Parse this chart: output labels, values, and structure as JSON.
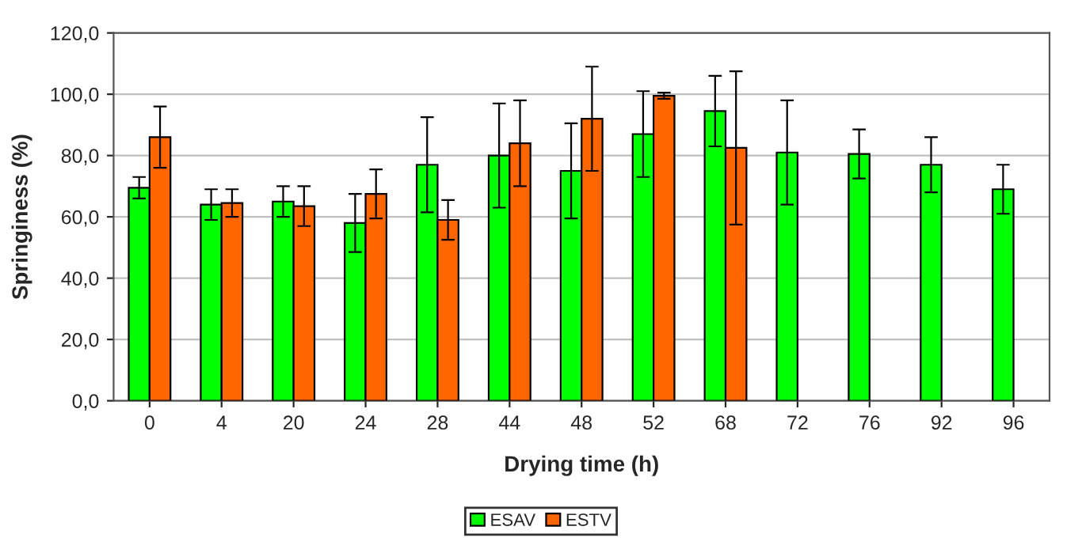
{
  "chart_data": {
    "type": "bar",
    "xlabel": "Drying time (h)",
    "ylabel": "Springiness (%)",
    "categories": [
      "0",
      "4",
      "20",
      "24",
      "28",
      "44",
      "48",
      "52",
      "68",
      "72",
      "76",
      "92",
      "96"
    ],
    "series": [
      {
        "name": "ESAV",
        "color": "#00ff00",
        "values": [
          69.5,
          64,
          65,
          58,
          77,
          80,
          75,
          87,
          94.5,
          81,
          80.5,
          77,
          69
        ],
        "errors": [
          3.5,
          5,
          5,
          9.5,
          15.5,
          17,
          15.5,
          14,
          11.5,
          17,
          8,
          9,
          8
        ]
      },
      {
        "name": "ESTV",
        "color": "#ff6600",
        "values": [
          86,
          64.5,
          63.5,
          67.5,
          59,
          84,
          92,
          99.5,
          82.5,
          null,
          null,
          null,
          null
        ],
        "errors": [
          10,
          4.5,
          6.5,
          8,
          6.5,
          14,
          17,
          1,
          25,
          null,
          null,
          null,
          null
        ]
      }
    ],
    "ylim": [
      0,
      120
    ],
    "yticks": [
      {
        "value": 0,
        "label": "0,0"
      },
      {
        "value": 20,
        "label": "20,0"
      },
      {
        "value": 40,
        "label": "40,0"
      },
      {
        "value": 60,
        "label": "60,0"
      },
      {
        "value": 80,
        "label": "80,0"
      },
      {
        "value": 100,
        "label": "100,0"
      },
      {
        "value": 120,
        "label": "120,0"
      }
    ],
    "grid": "y",
    "legend": "bottom"
  }
}
